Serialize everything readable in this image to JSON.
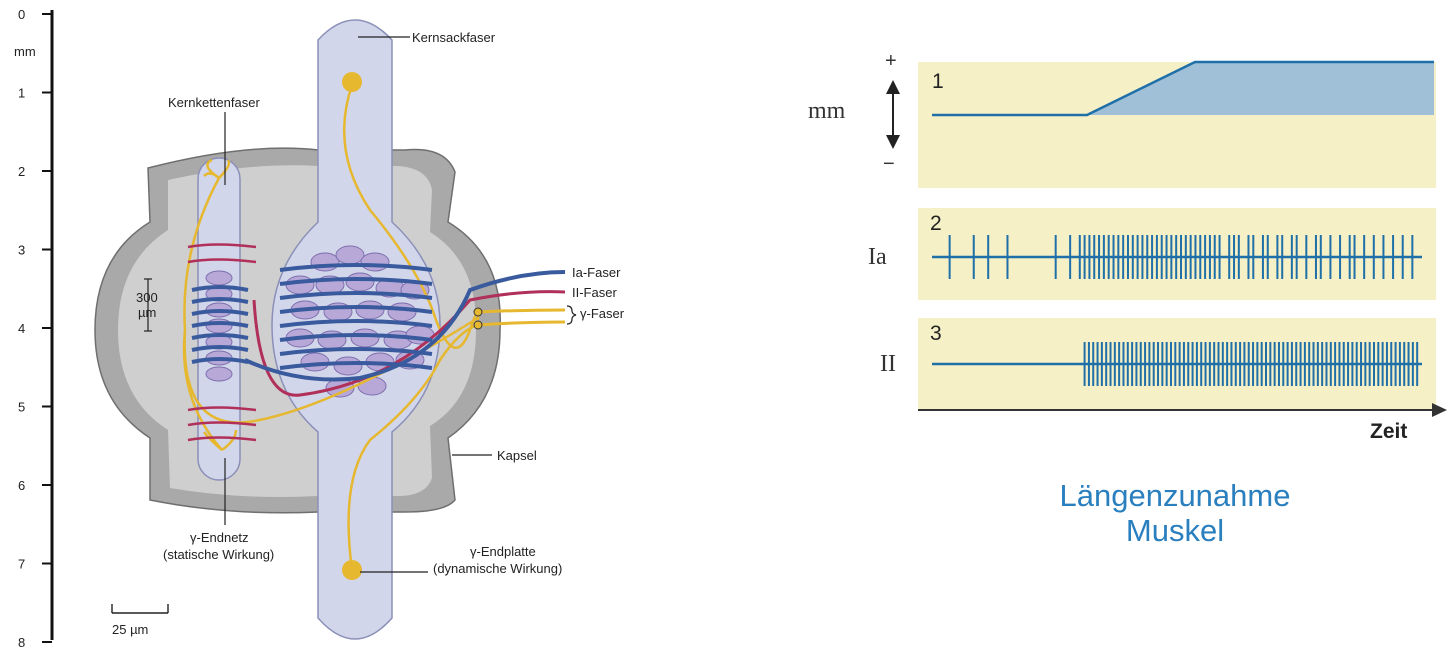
{
  "ruler": {
    "unit": "mm",
    "ticks": [
      "0",
      "1",
      "2",
      "3",
      "4",
      "5",
      "6",
      "7",
      "8"
    ]
  },
  "anatomy": {
    "kernsackfaser": "Kernsackfaser",
    "kernkettenfaser": "Kernkettenfaser",
    "ia_faser": "Ia-Faser",
    "ii_faser": "II-Faser",
    "gamma_faser": "γ-Faser",
    "kapsel": "Kapsel",
    "endnetz_line1": "γ-Endnetz",
    "endnetz_line2": "(statische Wirkung)",
    "endplatte_line1": "γ-Endplatte",
    "endplatte_line2": "(dynamische Wirkung)",
    "scale_300_top": "300",
    "scale_300_unit": "µm",
    "scale_25": "25 µm"
  },
  "graph": {
    "length_label": "mm",
    "plus": "+",
    "minus": "−",
    "ia_label": "Ia",
    "ii_label": "II",
    "panel1": "1",
    "panel2": "2",
    "panel3": "3",
    "time_label": "Zeit",
    "caption_line1": "Längenzunahme",
    "caption_line2": "Muskel"
  },
  "colors": {
    "trace_blue": "#1f6fa8",
    "panel_bg": "#f6f0c6",
    "caption_blue": "#2a7fbf",
    "ia_fiber": "#3a5a9e",
    "ii_fiber": "#b0305a",
    "gamma_fiber": "#e6b830",
    "fiber_body": "#d2d6ea",
    "capsule": "#a9a9a9"
  },
  "spike_trains": {
    "ia_spike_times": [
      0.02,
      0.07,
      0.1,
      0.14,
      0.24,
      0.27,
      0.29,
      0.3,
      0.31,
      0.32,
      0.33,
      0.34,
      0.35,
      0.36,
      0.37,
      0.38,
      0.39,
      0.4,
      0.41,
      0.42,
      0.43,
      0.44,
      0.45,
      0.46,
      0.47,
      0.48,
      0.49,
      0.5,
      0.51,
      0.52,
      0.53,
      0.54,
      0.55,
      0.56,
      0.57,
      0.58,
      0.6,
      0.61,
      0.62,
      0.64,
      0.65,
      0.67,
      0.68,
      0.7,
      0.71,
      0.73,
      0.74,
      0.76,
      0.78,
      0.79,
      0.81,
      0.83,
      0.85,
      0.86,
      0.88,
      0.9,
      0.92,
      0.94,
      0.96,
      0.98
    ],
    "ii_spike_start": 0.3,
    "ii_spike_end": 0.99,
    "ii_spike_count": 78
  }
}
